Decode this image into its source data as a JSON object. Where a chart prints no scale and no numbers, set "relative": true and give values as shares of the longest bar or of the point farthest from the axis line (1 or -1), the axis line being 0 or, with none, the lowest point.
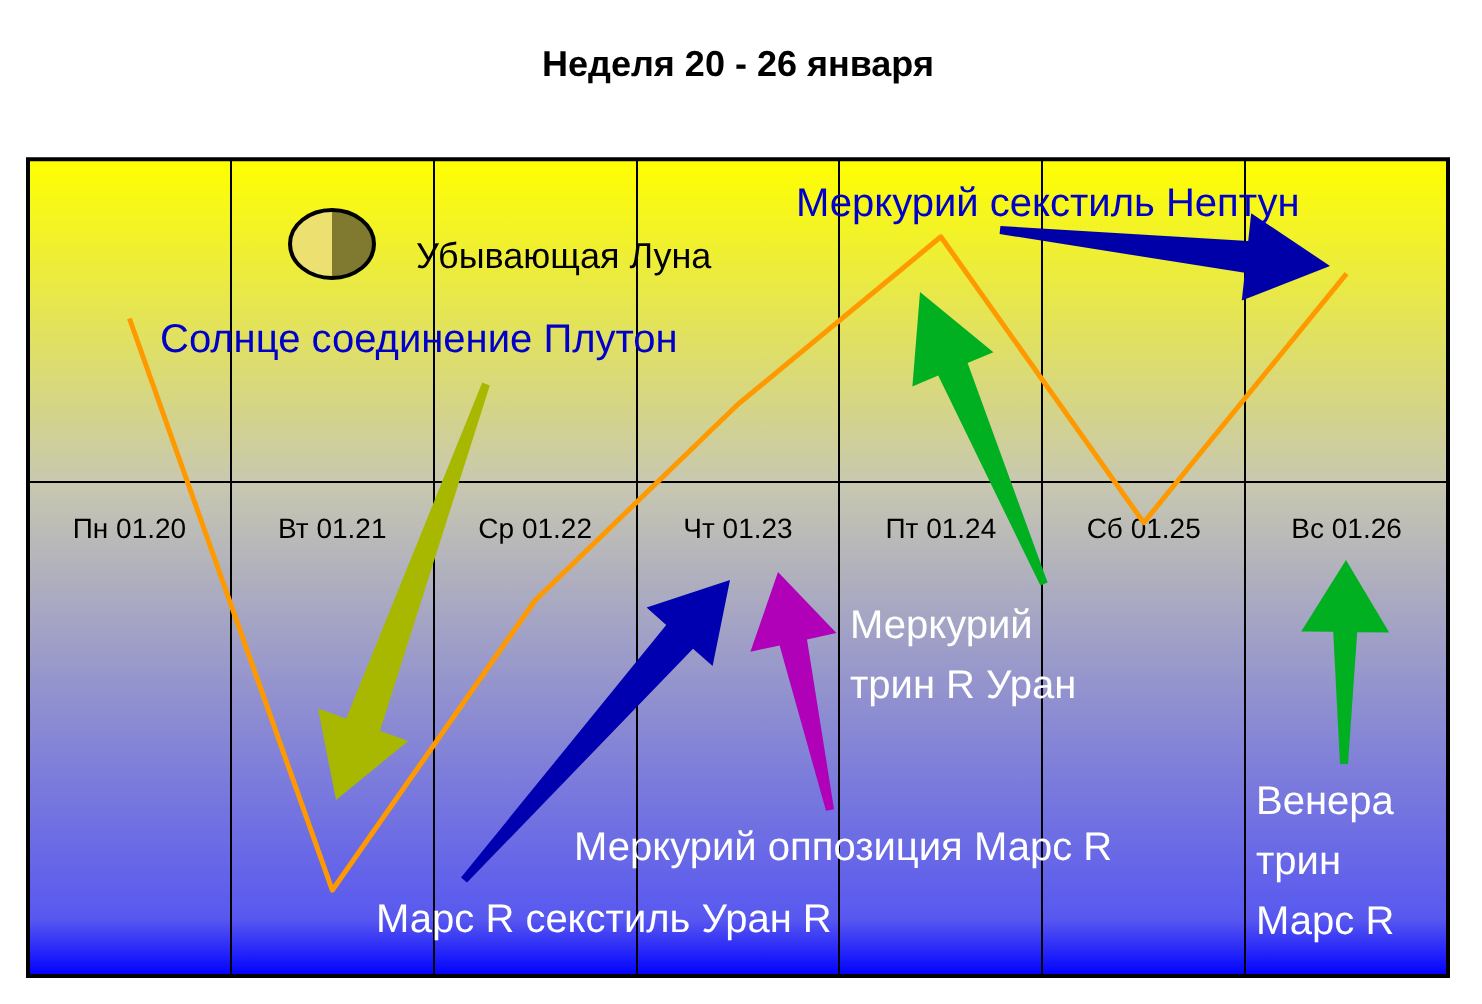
{
  "chart_data": {
    "type": "line",
    "title": "Неделя 20 - 26 января",
    "categories": [
      "Пн 01.20",
      "Вт 01.21",
      "Ср 01.22",
      "Чт 01.23",
      "Пт 01.24",
      "Сб 01.25",
      "Вс 01.26"
    ],
    "series": [
      {
        "color": "#ff9900",
        "values": [
          0.4,
          -1,
          -0.29,
          0.19,
          0.6,
          -0.1,
          0.51
        ]
      }
    ],
    "relative": true,
    "grid": "x",
    "legend": false,
    "annotations": [
      "Убывающая Луна",
      "Солнце соединение Плутон",
      "Меркурий секстиль Нептун",
      "Меркурий трин R Уран",
      "Меркурий оппозиция Марс R",
      "Марс R секстиль Уран R",
      "Венера трин Марс R"
    ]
  }
}
